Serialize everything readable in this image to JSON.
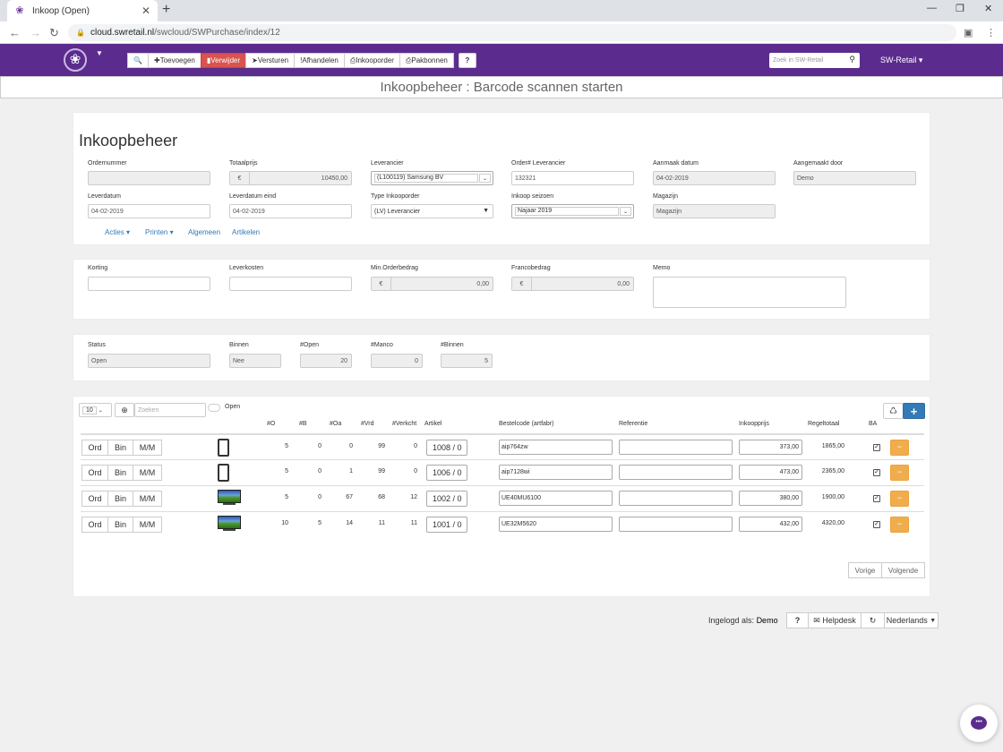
{
  "browser": {
    "tab_title": "Inkoop (Open)",
    "url_host": "cloud.swretail.nl",
    "url_path": "/swcloud/SWPurchase/index/12"
  },
  "toolbar": {
    "search_icon": "🔍",
    "toevoegen": "Toevoegen",
    "verwijder": "Verwijder",
    "versturen": "Versturen",
    "afhandelen": "Afhandelen",
    "inkooporder": "Inkooporder",
    "pakbonnen": "Pakbonnen",
    "help": "?"
  },
  "nav": {
    "search_placeholder": "Zoek in SW-Retail",
    "user_menu": "SW-Retail"
  },
  "page_title": "Inkoopbeheer : Barcode scannen starten",
  "header_form": {
    "heading": "Inkoopbeheer",
    "ordernummer_label": "Ordernummer",
    "ordernummer_value": "",
    "totaalprijs_label": "Totaalprijs",
    "currency": "€",
    "totaalprijs_value": "10450,00",
    "leverancier_label": "Leverancier",
    "leverancier_value": "(L100119) Samsung BV",
    "order_lev_label": "Order# Leverancier",
    "order_lev_value": "132321",
    "aanmaak_label": "Aanmaak datum",
    "aanmaak_value": "04-02-2019",
    "aangemaakt_door_label": "Aangemaakt door",
    "aangemaakt_door_value": "Demo",
    "leverdatum_label": "Leverdatum",
    "leverdatum_value": "04-02-2019",
    "leverdatum_eind_label": "Leverdatum eind",
    "leverdatum_eind_value": "04-02-2019",
    "type_label": "Type Inkooporder",
    "type_value": "(LV) Leverancier",
    "seizoen_label": "Inkoop seizoen",
    "seizoen_value": "Najaar 2019",
    "magazijn_label": "Magazijn",
    "magazijn_value": "Magazijn",
    "links": {
      "acties": "Acties",
      "printen": "Printen",
      "algemeen": "Algemeen",
      "artikelen": "Artikelen"
    }
  },
  "costs_form": {
    "korting_label": "Korting",
    "leverkosten_label": "Leverkosten",
    "min_order_label": "Min.Orderbedrag",
    "min_order_value": "0,00",
    "franco_label": "Francobedrag",
    "franco_value": "0,00",
    "memo_label": "Memo"
  },
  "status_form": {
    "status_label": "Status",
    "status_value": "Open",
    "binnen_label": "Binnen",
    "binnen_value": "Nee",
    "open_label": "#Open",
    "open_value": "20",
    "manco_label": "#Manco",
    "manco_value": "0",
    "binnen_count_label": "#Binnen",
    "binnen_count_value": "5"
  },
  "table": {
    "page_size": "10",
    "search_placeholder": "Zoeken",
    "open_toggle_label": "Open",
    "headers": {
      "o": "#O",
      "b": "#B",
      "oa": "#Oa",
      "vrd": "#Vrd",
      "verkcht": "#Verkcht",
      "artikel": "Artikel",
      "bestelcode": "Bestelcode (artfabr)",
      "referentie": "Referentie",
      "inkoopprijs": "Inkoopprijs",
      "regeltotaal": "Regeltotaal",
      "ba": "BA"
    },
    "row_buttons": {
      "ord": "Ord",
      "bin": "Bin",
      "mm": "M/M",
      "remove": "−"
    },
    "rows": [
      {
        "thumb": "phone",
        "o": "5",
        "b": "0",
        "oa": "0",
        "vrd": "99",
        "verkcht": "0",
        "artikel": "1008 / 0",
        "bestelcode": "aip764zw",
        "referentie": "",
        "inkoopprijs": "373,00",
        "regeltotaal": "1865,00",
        "ba": true
      },
      {
        "thumb": "phone",
        "o": "5",
        "b": "0",
        "oa": "1",
        "vrd": "99",
        "verkcht": "0",
        "artikel": "1006 / 0",
        "bestelcode": "aip7128wi",
        "referentie": "",
        "inkoopprijs": "473,00",
        "regeltotaal": "2365,00",
        "ba": true
      },
      {
        "thumb": "tv",
        "o": "5",
        "b": "0",
        "oa": "67",
        "vrd": "68",
        "verkcht": "12",
        "artikel": "1002 / 0",
        "bestelcode": "UE40MU6100",
        "referentie": "",
        "inkoopprijs": "380,00",
        "regeltotaal": "1900,00",
        "ba": true
      },
      {
        "thumb": "tv",
        "o": "10",
        "b": "5",
        "oa": "14",
        "vrd": "11",
        "verkcht": "11",
        "artikel": "1001 / 0",
        "bestelcode": "UE32M5620",
        "referentie": "",
        "inkoopprijs": "432,00",
        "regeltotaal": "4320,00",
        "ba": true
      }
    ],
    "prev": "Vorige",
    "next": "Volgende"
  },
  "footer": {
    "logged_in_label": "Ingelogd als:",
    "user": "Demo",
    "help": "?",
    "helpdesk": "Helpdesk",
    "language": "Nederlands"
  }
}
